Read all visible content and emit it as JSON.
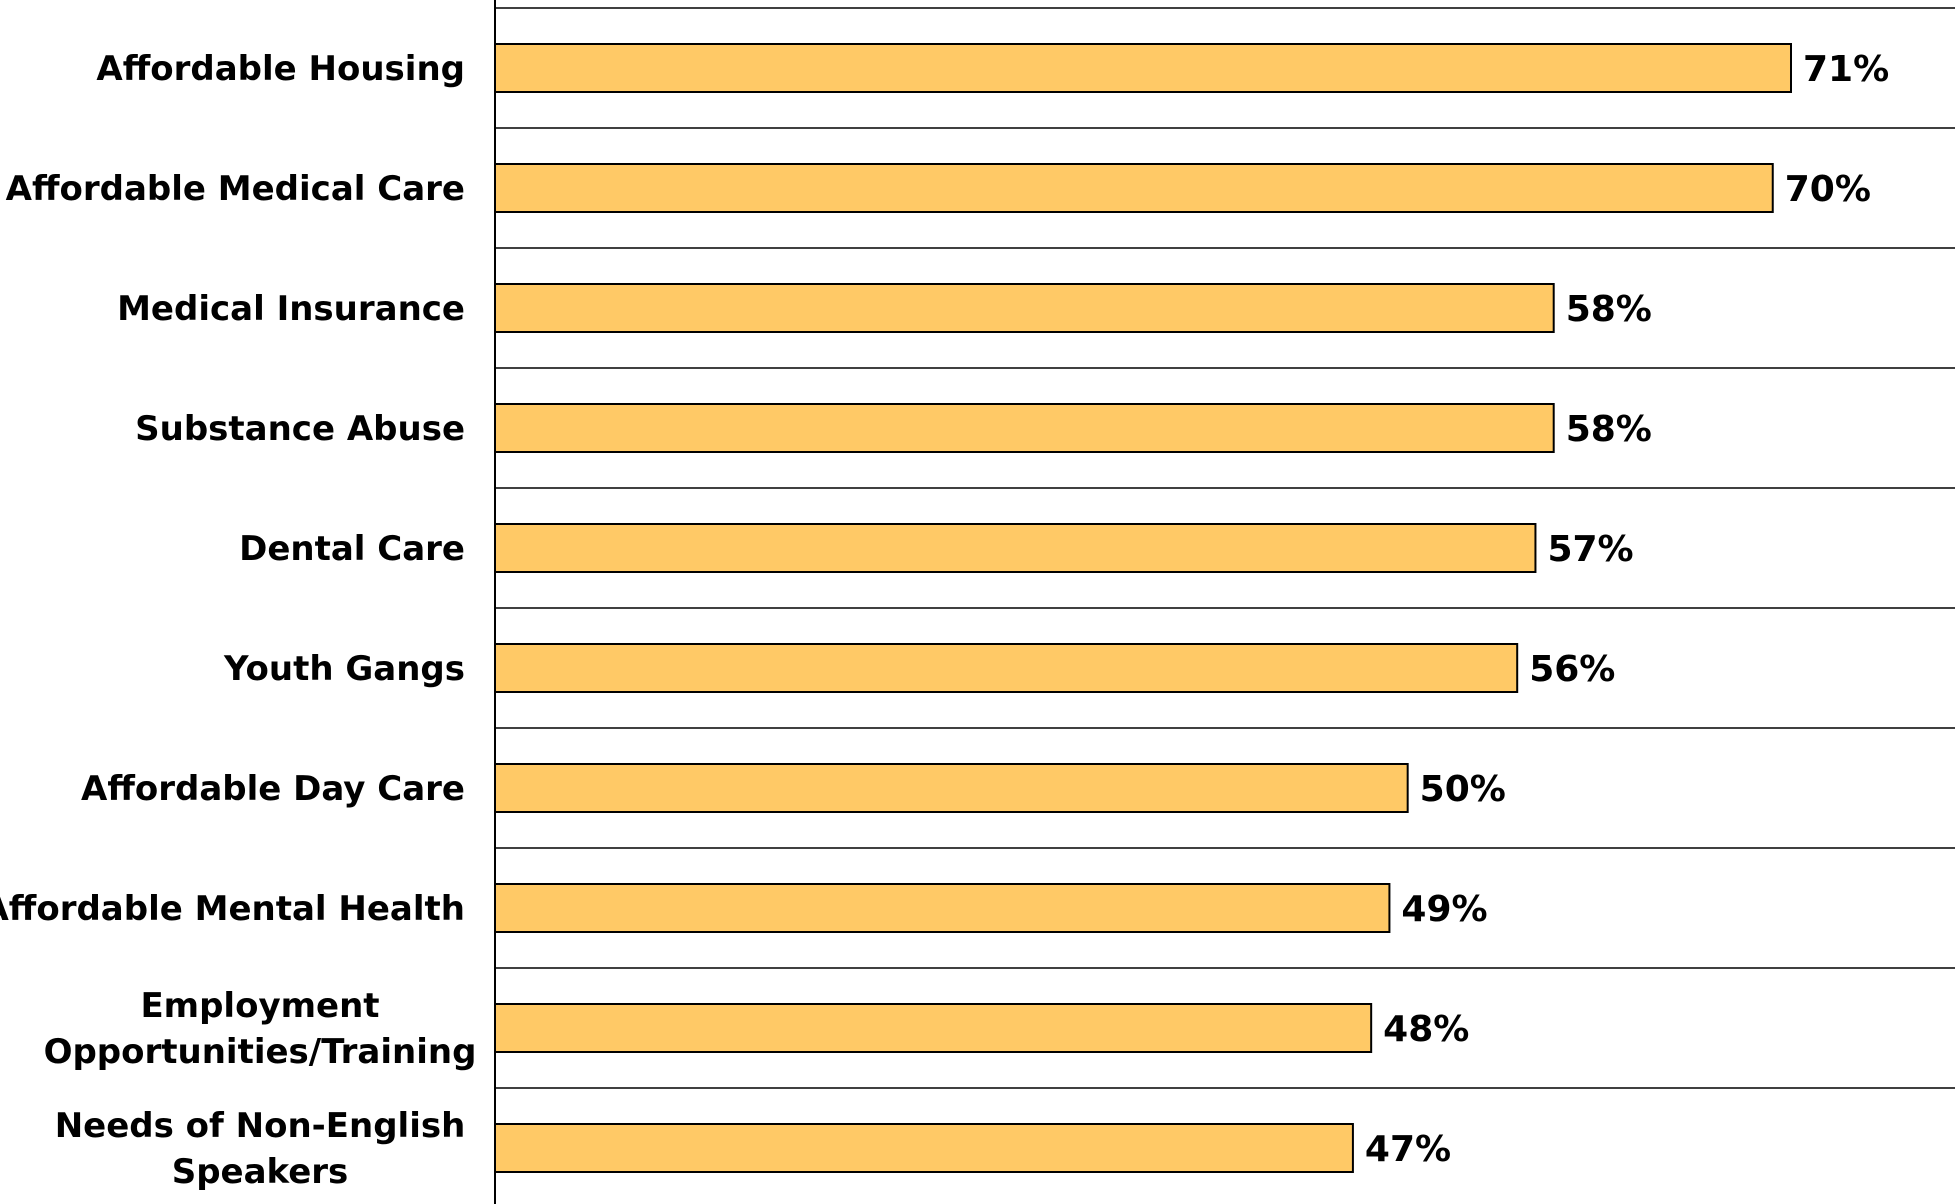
{
  "chart_data": {
    "type": "bar",
    "orientation": "horizontal",
    "title": "",
    "xlabel": "",
    "ylabel": "",
    "xlim": [
      0,
      90
    ],
    "grid": true,
    "legend": "none",
    "bar_color": "#FFC966",
    "categories": [
      "Affordable Housing",
      "Affordable Medical Care",
      "Medical Insurance",
      "Substance Abuse",
      "Dental Care",
      "Youth Gangs",
      "Affordable Day Care",
      "Affordable Mental Health",
      "Employment Opportunities/Training",
      "Needs of Non-English Speakers"
    ],
    "category_lines": [
      [
        "Affordable Housing"
      ],
      [
        "Affordable Medical Care"
      ],
      [
        "Medical Insurance"
      ],
      [
        "Substance Abuse"
      ],
      [
        "Dental Care"
      ],
      [
        "Youth Gangs"
      ],
      [
        "Affordable Day Care"
      ],
      [
        "Affordable Mental Health"
      ],
      [
        "Employment",
        "Opportunities/Training"
      ],
      [
        "Needs of Non-English",
        "Speakers"
      ]
    ],
    "values": [
      71,
      70,
      58,
      58,
      57,
      56,
      50,
      49,
      48,
      47
    ],
    "data_labels": [
      "71%",
      "70%",
      "58%",
      "58%",
      "57%",
      "56%",
      "50%",
      "49%",
      "48%",
      "47%"
    ]
  }
}
